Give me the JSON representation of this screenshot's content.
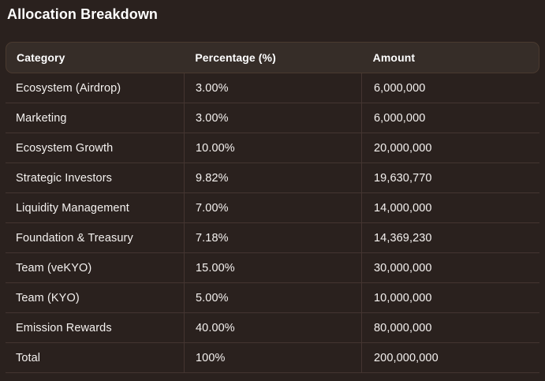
{
  "page": {
    "title": "Allocation Breakdown"
  },
  "colors": {
    "background": "#2a211e",
    "header_background": "#362d28",
    "header_border": "#4a3a30",
    "divider": "#443531",
    "text": "#f4f1ef",
    "title": "#ffffff"
  },
  "table": {
    "columns": [
      {
        "label": "Category"
      },
      {
        "label": "Percentage (%)"
      },
      {
        "label": "Amount"
      }
    ],
    "rows": [
      [
        "Ecosystem (Airdrop)",
        "3.00%",
        "6,000,000"
      ],
      [
        "Marketing",
        "3.00%",
        "6,000,000"
      ],
      [
        "Ecosystem Growth",
        "10.00%",
        "20,000,000"
      ],
      [
        "Strategic Investors",
        "9.82%",
        "19,630,770"
      ],
      [
        "Liquidity Management",
        "7.00%",
        "14,000,000"
      ],
      [
        "Foundation & Treasury",
        "7.18%",
        "14,369,230"
      ],
      [
        "Team (veKYO)",
        "15.00%",
        "30,000,000"
      ],
      [
        "Team (KYO)",
        "5.00%",
        "10,000,000"
      ],
      [
        "Emission Rewards",
        "40.00%",
        "80,000,000"
      ],
      [
        "Total",
        "100%",
        "200,000,000"
      ]
    ]
  }
}
